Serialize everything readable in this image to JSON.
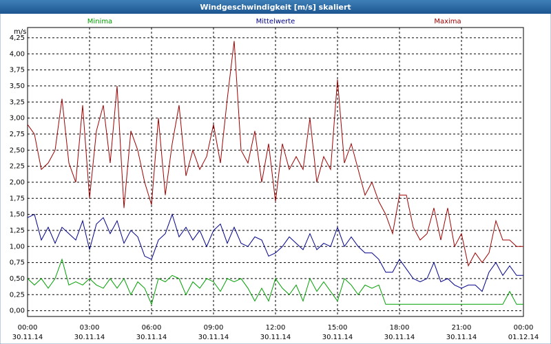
{
  "window_title": "Windgeschwindigkeit [m/s] skaliert",
  "chart_data": {
    "type": "line",
    "y_unit": "m/s",
    "x": [
      0,
      20,
      40,
      60,
      80,
      100,
      120,
      140,
      160,
      180,
      200,
      220,
      240,
      260,
      280,
      300,
      320,
      340,
      360,
      380,
      400,
      420,
      440,
      460,
      480,
      500,
      520,
      540,
      560,
      580,
      600,
      620,
      640,
      660,
      680,
      700,
      720,
      740,
      760,
      780,
      800,
      820,
      840,
      860,
      880,
      900,
      920,
      940,
      960,
      980,
      1000,
      1020,
      1040,
      1060,
      1080,
      1100,
      1120,
      1140,
      1160,
      1180,
      1200,
      1220,
      1240,
      1260,
      1280,
      1300,
      1320,
      1340,
      1360,
      1380,
      1400,
      1420,
      1440
    ],
    "series": [
      {
        "name": "Minima",
        "color": "#00a000",
        "values": [
          0.5,
          0.4,
          0.5,
          0.35,
          0.5,
          0.8,
          0.4,
          0.45,
          0.4,
          0.5,
          0.4,
          0.35,
          0.5,
          0.35,
          0.5,
          0.25,
          0.45,
          0.35,
          0.1,
          0.5,
          0.45,
          0.55,
          0.5,
          0.25,
          0.45,
          0.35,
          0.5,
          0.45,
          0.3,
          0.5,
          0.45,
          0.5,
          0.35,
          0.15,
          0.35,
          0.15,
          0.5,
          0.35,
          0.25,
          0.4,
          0.15,
          0.5,
          0.3,
          0.45,
          0.3,
          0.15,
          0.5,
          0.4,
          0.25,
          0.4,
          0.35,
          0.4,
          0.1,
          0.1,
          0.1,
          0.1,
          0.1,
          0.1,
          0.1,
          0.1,
          0.1,
          0.1,
          0.1,
          0.1,
          0.1,
          0.1,
          0.1,
          0.1,
          0.1,
          0.1,
          0.3,
          0.1,
          0.1
        ]
      },
      {
        "name": "Mittelwerte",
        "color": "#00008c",
        "values": [
          1.45,
          1.5,
          1.1,
          1.3,
          1.05,
          1.3,
          1.2,
          1.1,
          1.4,
          0.95,
          1.35,
          1.45,
          1.2,
          1.4,
          1.05,
          1.25,
          1.15,
          0.85,
          0.8,
          1.1,
          1.2,
          1.5,
          1.15,
          1.3,
          1.1,
          1.25,
          1.0,
          1.25,
          1.35,
          1.05,
          1.3,
          1.05,
          1.0,
          1.15,
          1.1,
          0.85,
          0.9,
          1.0,
          1.15,
          1.05,
          0.95,
          1.2,
          0.95,
          1.05,
          1.0,
          1.3,
          1.0,
          1.15,
          1.0,
          0.9,
          0.9,
          0.8,
          0.6,
          0.6,
          0.8,
          0.65,
          0.5,
          0.45,
          0.5,
          0.75,
          0.45,
          0.5,
          0.4,
          0.35,
          0.4,
          0.4,
          0.3,
          0.6,
          0.75,
          0.55,
          0.7,
          0.55,
          0.55
        ]
      },
      {
        "name": "Maxima",
        "color": "#a00000",
        "values": [
          2.9,
          2.75,
          2.2,
          2.3,
          2.5,
          3.3,
          2.3,
          2.0,
          3.2,
          1.75,
          2.8,
          3.2,
          2.3,
          3.5,
          1.6,
          2.8,
          2.5,
          2.0,
          1.65,
          3.0,
          1.8,
          2.6,
          3.2,
          2.1,
          2.5,
          2.2,
          2.4,
          2.9,
          2.3,
          3.3,
          4.2,
          2.5,
          2.3,
          2.8,
          2.0,
          2.6,
          1.7,
          2.6,
          2.2,
          2.4,
          2.2,
          3.0,
          2.0,
          2.4,
          2.2,
          3.6,
          2.3,
          2.6,
          2.2,
          1.8,
          2.0,
          1.7,
          1.5,
          1.2,
          1.8,
          1.8,
          1.3,
          1.1,
          1.2,
          1.6,
          1.1,
          1.6,
          1.0,
          1.2,
          0.7,
          0.9,
          0.75,
          0.9,
          1.4,
          1.1,
          1.1,
          1.0,
          1.0
        ]
      }
    ],
    "xlim": [
      0,
      1440
    ],
    "xticks": [
      {
        "value": 0,
        "label": "00:00"
      },
      {
        "value": 180,
        "label": "03:00"
      },
      {
        "value": 360,
        "label": "06:00"
      },
      {
        "value": 540,
        "label": "09:00"
      },
      {
        "value": 720,
        "label": "12:00"
      },
      {
        "value": 900,
        "label": "15:00"
      },
      {
        "value": 1080,
        "label": "18:00"
      },
      {
        "value": 1260,
        "label": "21:00"
      },
      {
        "value": 1440,
        "label": "00:00"
      }
    ],
    "xtick_dates": [
      "30.11.14",
      "30.11.14",
      "30.11.14",
      "30.11.14",
      "30.11.14",
      "30.11.14",
      "30.11.14",
      "30.11.14",
      "01.12.14"
    ],
    "ylim": [
      -0.09,
      4.41
    ],
    "yticks": [
      {
        "value": 0,
        "label": "0,00"
      },
      {
        "value": 0.25,
        "label": "0,25"
      },
      {
        "value": 0.5,
        "label": "0,50"
      },
      {
        "value": 0.75,
        "label": "0,75"
      },
      {
        "value": 1,
        "label": "1,00"
      },
      {
        "value": 1.25,
        "label": "1,25"
      },
      {
        "value": 1.5,
        "label": "1,50"
      },
      {
        "value": 1.75,
        "label": "1,75"
      },
      {
        "value": 2,
        "label": "2,00"
      },
      {
        "value": 2.25,
        "label": "2,25"
      },
      {
        "value": 2.5,
        "label": "2,50"
      },
      {
        "value": 2.75,
        "label": "2,75"
      },
      {
        "value": 3,
        "label": "3,00"
      },
      {
        "value": 3.25,
        "label": "3,25"
      },
      {
        "value": 3.5,
        "label": "3,50"
      },
      {
        "value": 3.75,
        "label": "3,75"
      },
      {
        "value": 4,
        "label": "4,00"
      },
      {
        "value": 4.25,
        "label": "4,25"
      }
    ],
    "grid": true
  }
}
